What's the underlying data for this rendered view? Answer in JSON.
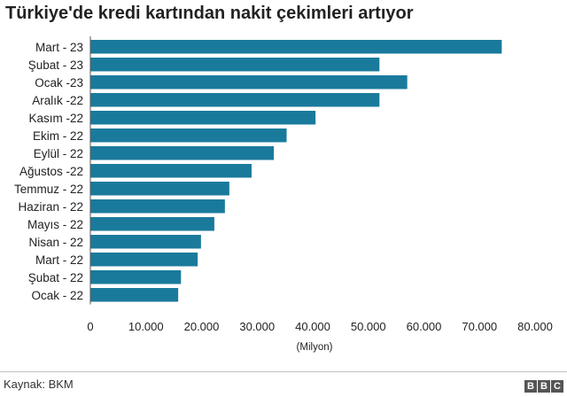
{
  "title": "Türkiye'de kredi kartından nakit çekimleri artıyor",
  "source": "Kaynak: BKM",
  "logo": [
    "B",
    "B",
    "C"
  ],
  "chart_data": {
    "type": "bar",
    "orientation": "horizontal",
    "categories": [
      "Mart - 23",
      "Şubat - 23",
      "Ocak -23",
      "Aralık -22",
      "Kasım -22",
      "Ekim - 22",
      "Eylül - 22",
      "Ağustos -22",
      "Temmuz - 22",
      "Haziran - 22",
      "Mayıs - 22",
      "Nisan - 22",
      "Mart - 22",
      "Şubat - 22",
      "Ocak - 22"
    ],
    "values": [
      74000,
      52000,
      57000,
      52000,
      40500,
      35300,
      33000,
      29000,
      25000,
      24200,
      22300,
      19900,
      19300,
      16300,
      15800
    ],
    "xlim": [
      0,
      80000
    ],
    "xticks": [
      "0",
      "10.000",
      "20.000",
      "30.000",
      "40.000",
      "50.000",
      "60.000",
      "70.000",
      "80.000"
    ],
    "xlabel": "(Milyon)",
    "bar_color": "#1a7a9c",
    "grid": false
  }
}
